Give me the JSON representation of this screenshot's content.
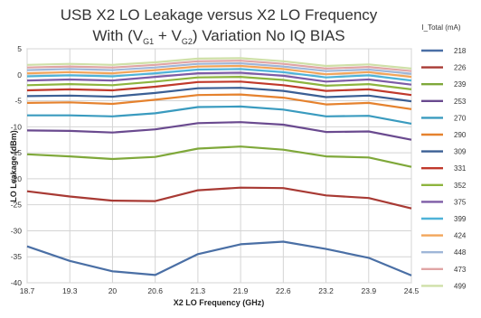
{
  "chart_data": {
    "type": "line",
    "title_main": "USB X2 LO Leakage versus X2 LO Frequency",
    "title_line2_prefix": "With (V",
    "title_sub1": "G1",
    "title_plus": " + V",
    "title_sub2": "G2",
    "title_line2_suffix": ") Variation  No IQ BIAS",
    "xlabel": "X2 LO Frequency (GHz)",
    "ylabel": "LO Leakage (dBm)",
    "legend_title": "I_Total  (mA)",
    "legend_position": "right",
    "grid": true,
    "ylim": [
      -40,
      5
    ],
    "y_ticks": [
      "5",
      "0",
      "-5",
      "-10",
      "-15",
      "-20",
      "-25",
      "-30",
      "-35",
      "-40"
    ],
    "x": [
      "18.7",
      "19.3",
      "20",
      "20.6",
      "21.3",
      "21.9",
      "22.6",
      "23.2",
      "23.9",
      "24.5"
    ],
    "series": [
      {
        "name": "218",
        "color": "#4a6fa5",
        "values": [
          -33,
          -35.8,
          -37.8,
          -38.5,
          -34.5,
          -32.6,
          -32.1,
          -33.5,
          -35.2,
          -38.6
        ]
      },
      {
        "name": "226",
        "color": "#a83a34",
        "values": [
          -22.4,
          -23.4,
          -24.2,
          -24.3,
          -22.2,
          -21.7,
          -21.8,
          -23.2,
          -23.7,
          -25.7
        ]
      },
      {
        "name": "239",
        "color": "#7fa83a",
        "values": [
          -15.3,
          -15.7,
          -16.2,
          -15.8,
          -14.2,
          -13.8,
          -14.4,
          -15.7,
          -15.9,
          -17.7
        ]
      },
      {
        "name": "253",
        "color": "#6a4a8f",
        "values": [
          -10.7,
          -10.8,
          -11.1,
          -10.5,
          -9.3,
          -9.1,
          -9.6,
          -11,
          -10.9,
          -12.5
        ]
      },
      {
        "name": "270",
        "color": "#3a9bbf",
        "values": [
          -7.8,
          -7.8,
          -8,
          -7.4,
          -6.2,
          -6.1,
          -6.7,
          -8,
          -7.9,
          -9.4
        ]
      },
      {
        "name": "290",
        "color": "#e5822e",
        "values": [
          -5.4,
          -5.3,
          -5.6,
          -4.8,
          -3.9,
          -3.8,
          -4.4,
          -5.7,
          -5.4,
          -6.6
        ]
      },
      {
        "name": "309",
        "color": "#3b5f94",
        "values": [
          -4.1,
          -4,
          -4.2,
          -3.5,
          -2.6,
          -2.5,
          -3.1,
          -4.3,
          -4,
          -5.1
        ]
      },
      {
        "name": "331",
        "color": "#c0392b",
        "values": [
          -3,
          -2.8,
          -3,
          -2.3,
          -1.4,
          -1.3,
          -2,
          -3.1,
          -2.8,
          -3.9
        ]
      },
      {
        "name": "352",
        "color": "#8db43e",
        "values": [
          -2,
          -1.8,
          -2,
          -1.3,
          -0.5,
          -0.4,
          -1,
          -2.1,
          -1.8,
          -2.8
        ]
      },
      {
        "name": "375",
        "color": "#7d5ca6",
        "values": [
          -1.1,
          -0.9,
          -1.1,
          -0.4,
          0.3,
          0.4,
          -0.2,
          -1.3,
          -0.9,
          -1.9
        ]
      },
      {
        "name": "399",
        "color": "#4fb3d8",
        "values": [
          -0.3,
          -0.1,
          -0.3,
          0.3,
          1,
          1.1,
          0.5,
          -0.5,
          -0.1,
          -1.1
        ]
      },
      {
        "name": "424",
        "color": "#f2a55a",
        "values": [
          0.3,
          0.5,
          0.3,
          0.9,
          1.6,
          1.7,
          1.1,
          0.1,
          0.5,
          -0.4
        ]
      },
      {
        "name": "448",
        "color": "#9fb6d8",
        "values": [
          0.9,
          1.1,
          0.9,
          1.4,
          2.1,
          2.2,
          1.6,
          0.7,
          1,
          0.2
        ]
      },
      {
        "name": "473",
        "color": "#e0a5a5",
        "values": [
          1.4,
          1.6,
          1.4,
          1.9,
          2.6,
          2.7,
          2.1,
          1.2,
          1.5,
          0.7
        ]
      },
      {
        "name": "499",
        "color": "#cfe0a8",
        "values": [
          1.9,
          2.1,
          1.9,
          2.4,
          3.1,
          3.2,
          2.6,
          1.7,
          2,
          1.2
        ]
      }
    ]
  }
}
